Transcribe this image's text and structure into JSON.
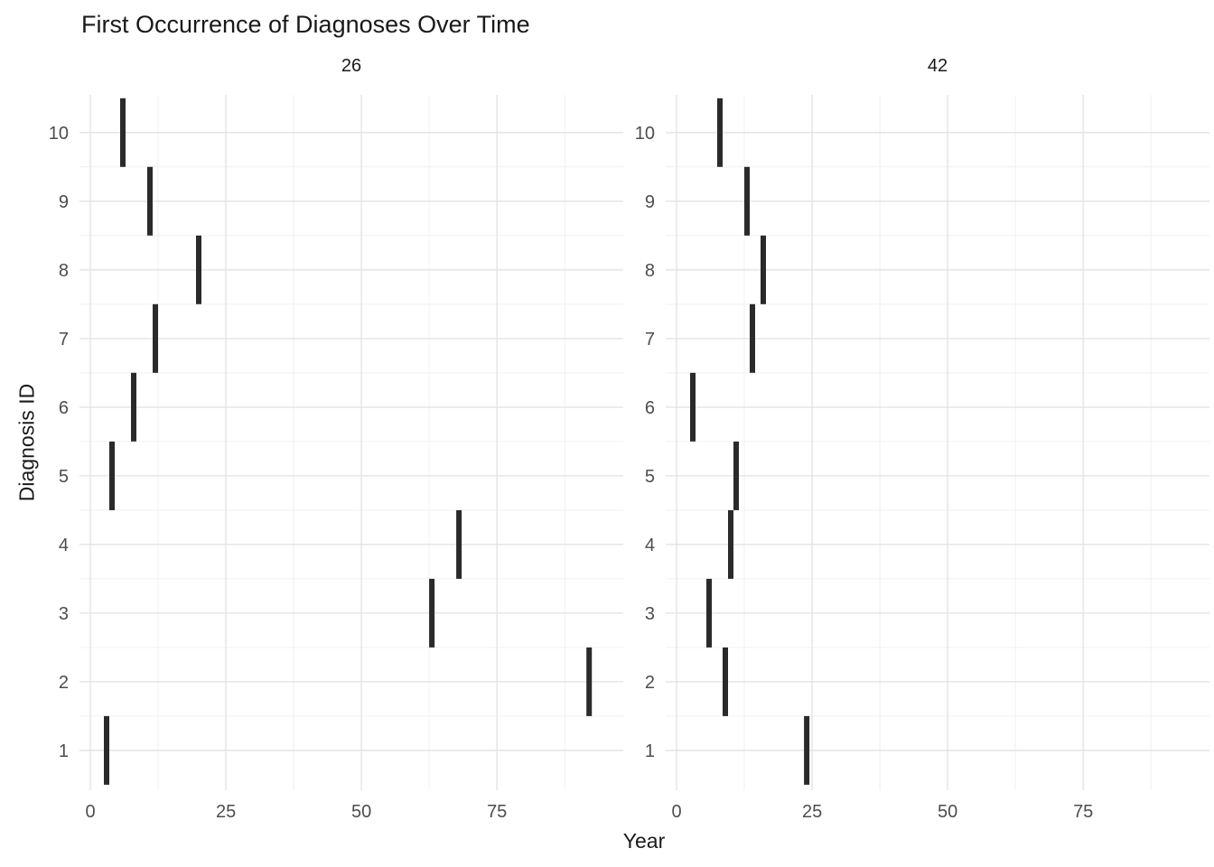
{
  "chart_data": {
    "type": "segment",
    "title": "First Occurrence of Diagnoses Over Time",
    "xlabel": "Year",
    "ylabel": "Diagnosis ID",
    "x_ticks": [
      0,
      25,
      50,
      75
    ],
    "x_minor": [
      12.5,
      37.5,
      62.5,
      87.5
    ],
    "y_ticks": [
      1,
      2,
      3,
      4,
      5,
      6,
      7,
      8,
      9,
      10
    ],
    "y_minor": [
      1.5,
      2.5,
      3.5,
      4.5,
      5.5,
      6.5,
      7.5,
      8.5,
      9.5
    ],
    "xlim": [
      -2,
      98.3
    ],
    "ylim": [
      0.42,
      10.55
    ],
    "legend": "none",
    "grid": "on",
    "mark_color": "#2a2a2a",
    "grid_major_color": "#e2e2e2",
    "grid_minor_color": "#f0f0f0",
    "tick_label_color": "#4d4d4d",
    "facets": [
      {
        "label": "26",
        "points": [
          {
            "id": 1,
            "x": 3
          },
          {
            "id": 2,
            "x": 92
          },
          {
            "id": 3,
            "x": 63
          },
          {
            "id": 4,
            "x": 68
          },
          {
            "id": 5,
            "x": 4
          },
          {
            "id": 6,
            "x": 8
          },
          {
            "id": 7,
            "x": 12
          },
          {
            "id": 8,
            "x": 20
          },
          {
            "id": 9,
            "x": 11
          },
          {
            "id": 10,
            "x": 6
          }
        ]
      },
      {
        "label": "42",
        "points": [
          {
            "id": 1,
            "x": 24
          },
          {
            "id": 2,
            "x": 9
          },
          {
            "id": 3,
            "x": 6
          },
          {
            "id": 4,
            "x": 10
          },
          {
            "id": 5,
            "x": 11
          },
          {
            "id": 6,
            "x": 3
          },
          {
            "id": 7,
            "x": 14
          },
          {
            "id": 8,
            "x": 16
          },
          {
            "id": 9,
            "x": 13
          },
          {
            "id": 10,
            "x": 8
          }
        ]
      }
    ]
  }
}
